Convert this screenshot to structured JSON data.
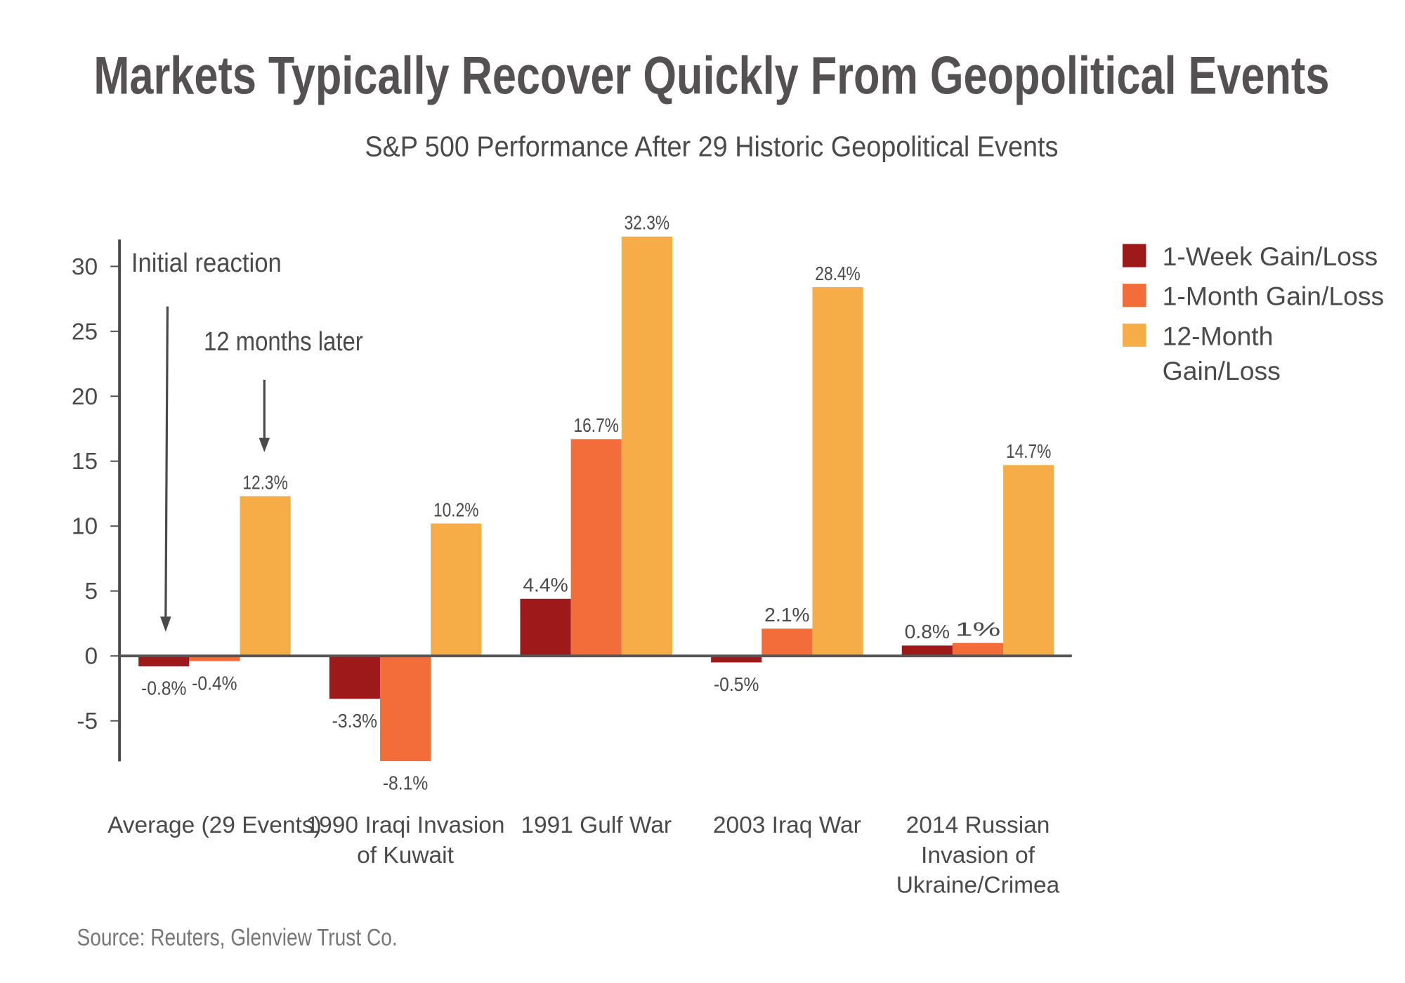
{
  "chart_data": {
    "type": "bar",
    "title": "Markets Typically Recover Quickly From Geopolitical Events",
    "subtitle": "S&P 500 Performance After 29 Historic Geopolitical Events",
    "xlabel": "",
    "ylabel": "",
    "ylim": [
      -8.1,
      32.3
    ],
    "yticks": [
      30,
      25,
      20,
      15,
      10,
      5,
      0,
      -5
    ],
    "grid": false,
    "legend_position": "right",
    "categories": [
      [
        "Average (29 Events)"
      ],
      [
        "1990 Iraqi Invasion",
        "of Kuwait"
      ],
      [
        "1991 Gulf War"
      ],
      [
        "2003 Iraq War"
      ],
      [
        "2014 Russian",
        "Invasion of",
        "Ukraine/Crimea"
      ]
    ],
    "series": [
      {
        "name": "1-Week Gain/Loss",
        "legend_lines": [
          "1-Week Gain/Loss"
        ],
        "color": "#9e1a1a",
        "values": [
          -0.8,
          -3.3,
          4.4,
          -0.5,
          0.8
        ]
      },
      {
        "name": "1-Month Gain/Loss",
        "legend_lines": [
          "1-Month Gain/Loss"
        ],
        "color": "#f26d3a",
        "values": [
          -0.4,
          -8.1,
          16.7,
          2.1,
          1.0
        ]
      },
      {
        "name": "12-Month Gain/Loss",
        "legend_lines": [
          "12-Month",
          "Gain/Loss"
        ],
        "color": "#f6ad47",
        "values": [
          12.3,
          10.2,
          32.3,
          28.4,
          14.7
        ]
      }
    ],
    "annotations": [
      "Initial reaction",
      "12 months later"
    ],
    "source": "Source: Reuters, Glenview Trust Co."
  }
}
